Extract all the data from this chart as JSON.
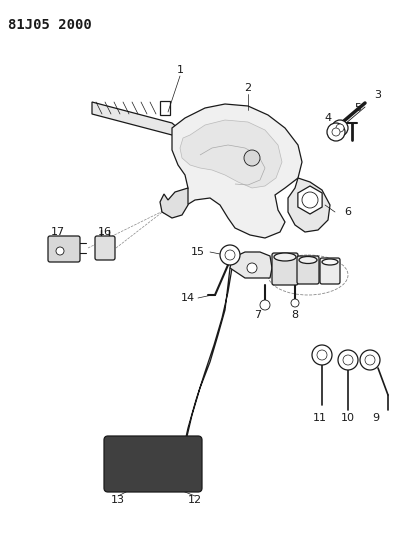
{
  "title": "81J05 2000",
  "background_color": "#ffffff",
  "line_color": "#1a1a1a",
  "title_fontsize": 10,
  "label_fontsize": 8,
  "figsize": [
    3.94,
    5.33
  ],
  "dpi": 100
}
